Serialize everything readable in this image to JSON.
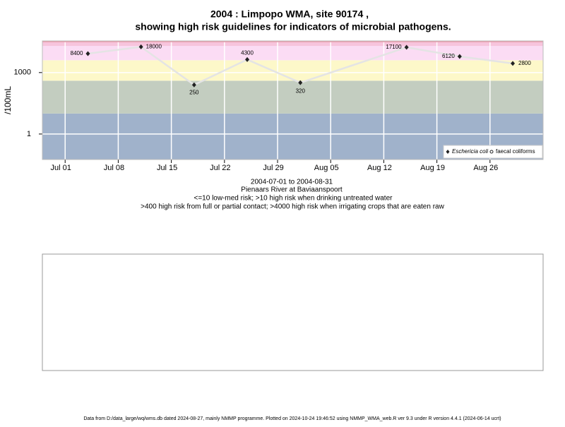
{
  "chart_data": {
    "type": "line",
    "title": "2004 : Limpopo WMA, site 90174 ,",
    "subtitle": "showing high risk guidelines for indicators of microbial pathogens.",
    "y_label": "/100mL",
    "log_y": true,
    "grid": true,
    "legend_position": "bottom-right",
    "x": [
      "2004-07-04",
      "2004-07-11",
      "2004-07-18",
      "2004-07-25",
      "2004-08-01",
      "2004-08-15",
      "2004-08-22",
      "2004-08-29"
    ],
    "series": [
      {
        "name": "Eschericia coli",
        "color": "#222222",
        "line_color": "#e4e4e4",
        "values": [
          8400,
          18000,
          250,
          4300,
          320,
          17100,
          6120,
          2800
        ]
      },
      {
        "name": "faecal coliforms",
        "color": "#222222",
        "values": [
          null,
          null,
          null,
          null,
          null,
          null,
          null,
          null
        ]
      }
    ],
    "bands": [
      {
        "from": 0.057,
        "to": 10,
        "color": "#a0b2cb"
      },
      {
        "from": 10,
        "to": 400,
        "color": "#c3cdc0"
      },
      {
        "from": 400,
        "to": 4000,
        "color": "#fdf8c9"
      },
      {
        "from": 4000,
        "to": 20000,
        "color": "#fbdcf4"
      },
      {
        "from": 20000,
        "to": 35000,
        "color": "#f7c4dc"
      }
    ],
    "xlim": [
      "2004-06-28",
      "2004-09-02"
    ],
    "xticks": [
      {
        "value": "2004-07-01",
        "label": "Jul 01"
      },
      {
        "value": "2004-07-08",
        "label": "Jul 08"
      },
      {
        "value": "2004-07-15",
        "label": "Jul 15"
      },
      {
        "value": "2004-07-22",
        "label": "Jul 22"
      },
      {
        "value": "2004-07-29",
        "label": "Jul 29"
      },
      {
        "value": "2004-08-05",
        "label": "Aug 05"
      },
      {
        "value": "2004-08-12",
        "label": "Aug 12"
      },
      {
        "value": "2004-08-19",
        "label": "Aug 19"
      },
      {
        "value": "2004-08-26",
        "label": "Aug 26"
      }
    ],
    "ylim": [
      0.057,
      35000
    ],
    "yticks": [
      1,
      1000
    ],
    "captions": [
      "2004-07-01 to 2004-08-31",
      "Pienaars River at Baviaanspoort",
      "<=10 low-med risk; >10 high risk when drinking untreated water",
      ">400 high risk from full or partial contact; >4000 high risk when irrigating crops that are eaten raw"
    ],
    "footer": "Data from D:/data_large/wq/wms.db dated 2024-08-27, mainly NMMP programme. Plotted on 2024-10-24 19:46:52 using NMMP_WMA_web.R ver 9.3 under R version 4.4.1 (2024-06-14 ucrt)"
  }
}
